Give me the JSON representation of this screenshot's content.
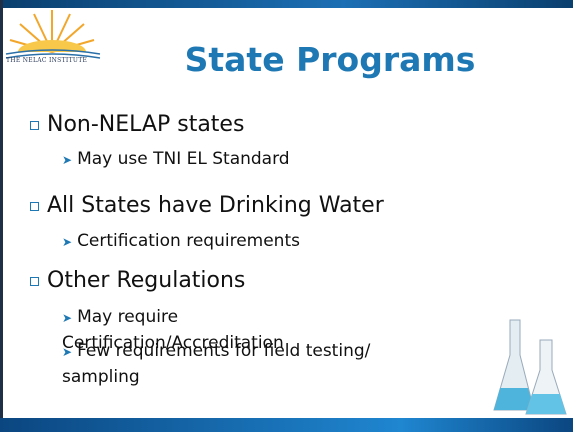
{
  "logo": {
    "text": "THE NELAC INSTITUTE"
  },
  "header": {
    "title": "State Programs"
  },
  "bullets": [
    {
      "text": "Non-NELAP states",
      "items": [
        "May use TNI EL Standard"
      ]
    },
    {
      "text": "All States have Drinking Water",
      "items": [
        "Certification requirements"
      ]
    },
    {
      "text": "Other Regulations",
      "items": [
        "May require Certification/Accreditation",
        "Few requirements for field testing/ sampling"
      ]
    }
  ]
}
